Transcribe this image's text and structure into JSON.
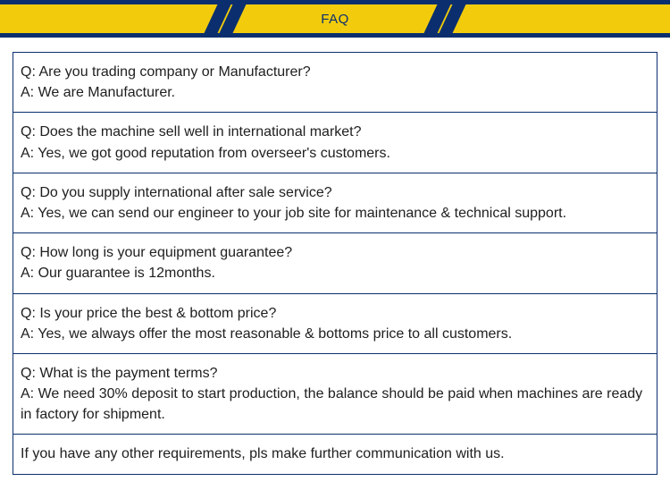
{
  "header": {
    "title": "FAQ",
    "bg_color": "#f2cc0c",
    "border_color": "#0b2f6e",
    "title_color": "#0b2f6e",
    "slash_color": "#0b2f6e"
  },
  "faq": {
    "border_color": "#0b2f6e",
    "text_color": "#202020",
    "font_size": 16,
    "items": [
      {
        "question": "Q: Are you trading company or Manufacturer?",
        "answer": "A: We are Manufacturer."
      },
      {
        "question": "Q: Does the machine sell well in international market?",
        "answer": "A: Yes, we got good reputation from overseer's customers."
      },
      {
        "question": "Q: Do you supply international after sale service?",
        "answer": "A: Yes, we can send our engineer to your job site for maintenance & technical support."
      },
      {
        "question": "Q: How long is your equipment guarantee?",
        "answer": "A: Our guarantee is 12months."
      },
      {
        "question": "Q: Is your price the best & bottom price?",
        "answer": "A: Yes, we always offer the most reasonable & bottoms price to all customers."
      },
      {
        "question": "Q: What is the payment terms?",
        "answer": "A: We need 30% deposit to start production, the balance should be paid when machines are ready in factory for shipment."
      }
    ],
    "footer_note": "If you have any other requirements, pls make further communication with us."
  }
}
